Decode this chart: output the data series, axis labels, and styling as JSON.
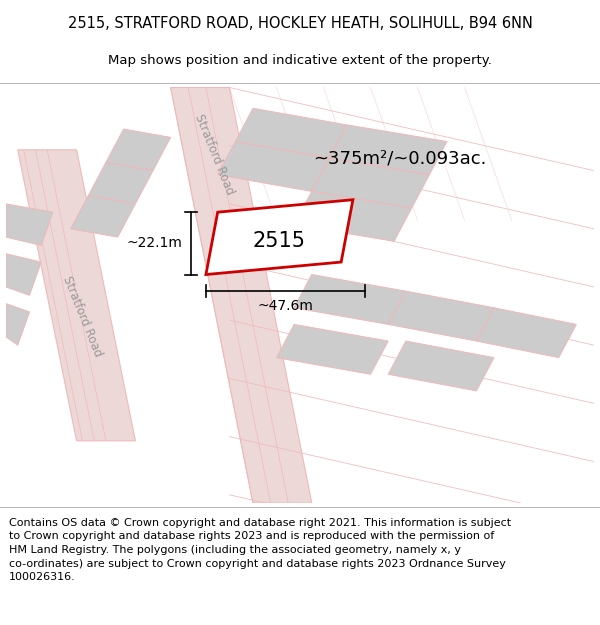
{
  "title_line1": "2515, STRATFORD ROAD, HOCKLEY HEATH, SOLIHULL, B94 6NN",
  "title_line2": "Map shows position and indicative extent of the property.",
  "footer_lines": [
    "Contains OS data © Crown copyright and database right 2021. This information is subject",
    "to Crown copyright and database rights 2023 and is reproduced with the permission of",
    "HM Land Registry. The polygons (including the associated geometry, namely x, y",
    "co-ordinates) are subject to Crown copyright and database rights 2023 Ordnance Survey",
    "100026316."
  ],
  "area_label": "~375m²/~0.093ac.",
  "plot_id": "2515",
  "dim_width": "~47.6m",
  "dim_height": "~22.1m",
  "background_color": "#ffffff",
  "map_bg_color": "#f2f2f2",
  "road_stroke": "#f0b8b8",
  "road_fill": "#edd8d8",
  "building_fill": "#cccccc",
  "building_stroke": "#f0b8b8",
  "plot_outline_color": "#cc0000",
  "road_label_color": "#999999",
  "title_fontsize": 10.5,
  "subtitle_fontsize": 9.5,
  "footer_fontsize": 8.0,
  "plot_id_fontsize": 15,
  "area_fontsize": 13,
  "dim_fontsize": 10,
  "road_label_fontsize": 8.5
}
